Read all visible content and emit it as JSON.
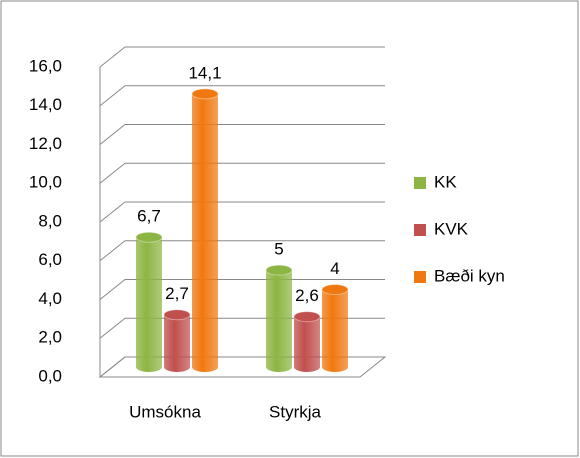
{
  "chart_data": {
    "type": "bar3d",
    "categories": [
      "Umsókna",
      "Styrkja"
    ],
    "series": [
      {
        "name": "KK",
        "color": "#8db543",
        "values": [
          6.7,
          5
        ],
        "value_labels": [
          "6,7",
          "5"
        ]
      },
      {
        "name": "KVK",
        "color": "#c0504d",
        "values": [
          2.7,
          2.6
        ],
        "value_labels": [
          "2,7",
          "2,6"
        ]
      },
      {
        "name": "Bæði kyn",
        "color": "#f07810",
        "values": [
          14.1,
          4
        ],
        "value_labels": [
          "14,1",
          "4"
        ]
      }
    ],
    "ylim": [
      0,
      16
    ],
    "yticks": [
      {
        "value": 0,
        "label": "0,0"
      },
      {
        "value": 2,
        "label": "2,0"
      },
      {
        "value": 4,
        "label": "4,0"
      },
      {
        "value": 6,
        "label": "6,0"
      },
      {
        "value": 8,
        "label": "8,0"
      },
      {
        "value": 10,
        "label": "10,0"
      },
      {
        "value": 12,
        "label": "12,0"
      },
      {
        "value": 14,
        "label": "14,0"
      },
      {
        "value": 16,
        "label": "16,0"
      }
    ],
    "grid": true,
    "legend": "right"
  }
}
